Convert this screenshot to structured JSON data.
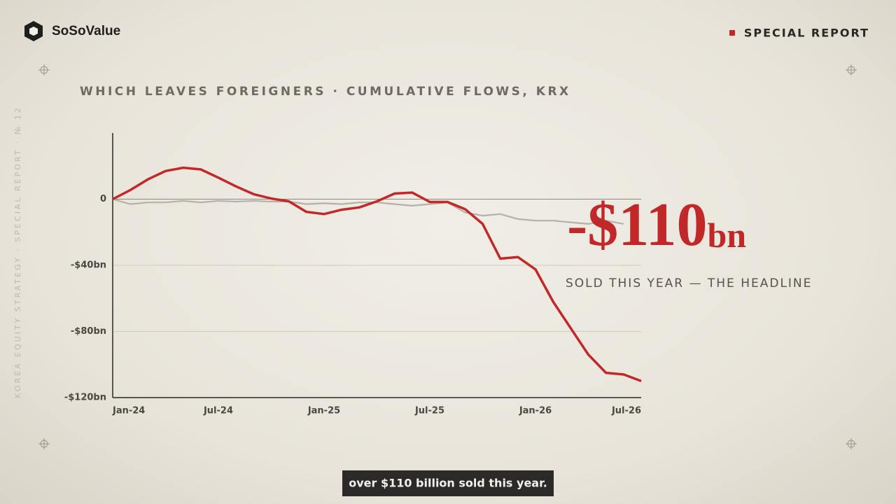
{
  "brand": "SoSoValue",
  "badge": "SPECIAL REPORT",
  "side_text": "KOREA EQUITY STRATEGY · SPECIAL REPORT · № 12",
  "caption": "over $110 billion sold this year.",
  "chart_data": {
    "type": "line",
    "title": "WHICH LEAVES FOREIGNERS · CUMULATIVE FLOWS, KRX",
    "annotation": {
      "figure": "-$110",
      "unit": "bn",
      "note": "SOLD THIS YEAR — THE HEADLINE"
    },
    "categories": [
      "Jan-24",
      null,
      null,
      null,
      null,
      null,
      "Jul-24",
      null,
      null,
      null,
      null,
      null,
      "Jan-25",
      null,
      null,
      null,
      null,
      null,
      "Jul-25",
      null,
      null,
      null,
      null,
      null,
      "Jan-26",
      null,
      null,
      null,
      null,
      null,
      "Jul-26"
    ],
    "series": [
      {
        "color": "#b5b1a8",
        "values": [
          0,
          -3,
          -2,
          -2,
          -1,
          -2,
          -1,
          -1.5,
          -1,
          -1.5,
          -1.5,
          -3,
          -2.5,
          -3,
          -2,
          -2,
          -3,
          -4,
          -3,
          -2,
          -8,
          -10,
          -9,
          -12,
          -13,
          -13,
          -14,
          -15,
          -13,
          -15,
          null
        ]
      },
      {
        "color": "#c0282a",
        "values": [
          0,
          5.5,
          12,
          17,
          19,
          18,
          13,
          7.7,
          3,
          0.4,
          -1.3,
          -7.7,
          -9,
          -6.4,
          -5,
          -1.3,
          3.4,
          4,
          -1.7,
          -1.7,
          -6,
          -15,
          -36,
          -35,
          -42.5,
          -62,
          -78,
          -94,
          -105,
          -106,
          -110
        ]
      }
    ],
    "ylim": [
      -120,
      40
    ],
    "yticks": [
      {
        "value": -120,
        "label": "-$120bn"
      },
      {
        "value": -80,
        "label": "-$80bn"
      },
      {
        "value": -40,
        "label": "-$40bn"
      },
      0
    ],
    "grid": true
  }
}
